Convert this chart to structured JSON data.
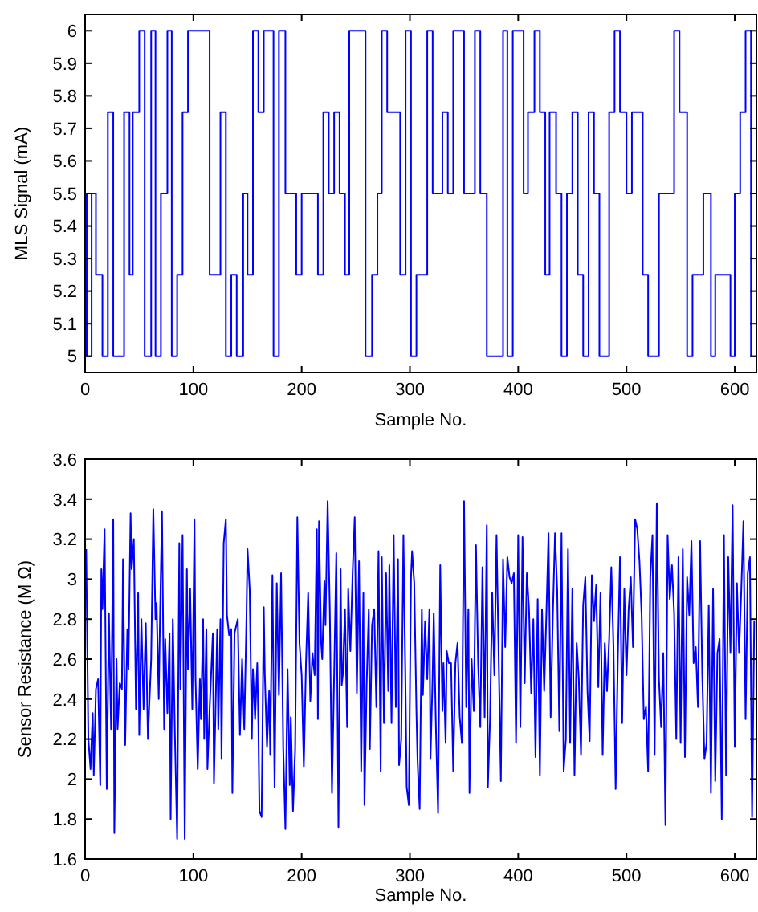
{
  "chart_data": [
    {
      "type": "step",
      "xlabel": "Sample No.",
      "ylabel": "MLS Signal (mA)",
      "xlim": [
        0,
        620
      ],
      "ylim": [
        4.95,
        6.05
      ],
      "xticks": [
        0,
        100,
        200,
        300,
        400,
        500,
        600
      ],
      "yticks": [
        5,
        5.1,
        5.2,
        5.3,
        5.4,
        5.5,
        5.6,
        5.7,
        5.8,
        5.9,
        6
      ],
      "series": [
        {
          "color": "#0000ff",
          "x": [
            0,
            1.5,
            6,
            10,
            16,
            21,
            26,
            36,
            41,
            44,
            50,
            55,
            61,
            65,
            70,
            76,
            80,
            85,
            90,
            95,
            115,
            125,
            130,
            135,
            140,
            146,
            150,
            155,
            160,
            165,
            174,
            179,
            185,
            195,
            200,
            215,
            220,
            225,
            230,
            235,
            240,
            244,
            259,
            265,
            270,
            274,
            279,
            291,
            296,
            301,
            306,
            316,
            321,
            330,
            335,
            340,
            350,
            360,
            365,
            371,
            386,
            390,
            395,
            405,
            409,
            415,
            420,
            425,
            429,
            435,
            440,
            445,
            450,
            455,
            460,
            465,
            470,
            475,
            484,
            489,
            494,
            500,
            505,
            515,
            520,
            530,
            544,
            549,
            556,
            561,
            571,
            578,
            582,
            596,
            600,
            605,
            610,
            615,
            620
          ],
          "values": [
            5.5,
            5,
            5.5,
            5.25,
            5,
            5.75,
            5,
            5.75,
            5.25,
            5.75,
            6,
            5,
            6,
            5,
            5.5,
            6,
            5,
            5.25,
            5.75,
            6,
            5.25,
            5.75,
            5,
            5.25,
            5,
            5.5,
            5.25,
            6,
            5.75,
            6,
            5,
            6,
            5.5,
            5.25,
            5.5,
            5.25,
            5.75,
            5.5,
            5.75,
            5.5,
            5.25,
            6,
            5,
            5.25,
            5.5,
            6,
            5.75,
            5.25,
            6,
            5,
            5.25,
            6,
            5.5,
            5.75,
            5.5,
            6,
            5.5,
            6,
            5.5,
            5,
            6,
            5,
            6,
            5.5,
            5.75,
            6,
            5.75,
            5.25,
            5.75,
            5.5,
            5,
            5.5,
            5.75,
            5.25,
            5,
            5.75,
            5.5,
            5,
            5.75,
            6,
            5.75,
            5.5,
            5.75,
            5.25,
            5,
            5.5,
            6,
            5.75,
            5,
            5.25,
            5.5,
            5,
            5.25,
            5,
            5.5,
            5.75,
            6,
            5,
            5
          ]
        }
      ]
    },
    {
      "type": "line",
      "xlabel": "Sample No.",
      "ylabel": "Sensor Resistance (M Ω)",
      "xlim": [
        0,
        620
      ],
      "ylim": [
        1.6,
        3.6
      ],
      "xticks": [
        0,
        100,
        200,
        300,
        400,
        500,
        600
      ],
      "yticks": [
        1.6,
        1.8,
        2,
        2.2,
        2.4,
        2.6,
        2.8,
        3,
        3.2,
        3.4,
        3.6
      ],
      "series": [
        {
          "color": "#0000ff",
          "x": [
            1,
            3,
            5,
            7,
            8,
            10,
            12,
            14,
            15,
            16,
            18,
            20,
            22,
            24,
            26,
            27,
            29,
            30,
            32,
            34,
            35,
            37,
            39,
            40,
            42,
            43,
            45,
            47,
            49,
            50,
            52,
            54,
            56,
            58,
            61,
            63,
            65,
            66,
            68,
            69,
            71,
            73,
            74,
            76,
            78,
            79,
            81,
            83,
            85,
            87,
            88,
            90,
            92,
            94,
            95,
            97,
            99,
            101,
            102,
            104,
            106,
            107,
            109,
            110,
            112,
            113,
            115,
            118,
            119,
            122,
            123,
            125,
            126,
            128,
            130,
            131,
            133,
            135,
            136,
            138,
            141,
            143,
            145,
            147,
            149,
            150,
            152,
            154,
            155,
            157,
            159,
            160,
            161,
            163,
            165,
            166,
            168,
            170,
            171,
            173,
            175,
            177,
            179,
            181,
            183,
            185,
            187,
            189,
            190,
            192,
            194,
            196,
            198,
            200,
            202,
            204,
            206,
            208,
            210,
            212,
            214,
            215,
            216,
            218,
            219,
            221,
            222,
            224,
            226,
            228,
            230,
            232,
            234,
            236,
            237,
            238,
            240,
            242,
            243,
            245,
            247,
            249,
            251,
            253,
            255,
            257,
            258,
            260,
            262,
            263,
            265,
            267,
            269,
            271,
            273,
            274,
            276,
            278,
            280,
            281,
            283,
            285,
            287,
            289,
            290,
            292,
            294,
            296,
            297,
            299,
            301,
            302,
            304,
            306,
            307,
            309,
            311,
            312,
            314,
            316,
            318,
            319,
            321,
            322,
            324,
            326,
            328,
            330,
            331,
            333,
            334,
            336,
            338,
            340,
            342,
            344,
            346,
            348,
            350,
            352,
            354,
            355,
            357,
            359,
            361,
            363,
            365,
            367,
            369,
            371,
            372,
            374,
            376,
            378,
            380,
            382,
            384,
            386,
            388,
            390,
            392,
            394,
            396,
            398,
            400,
            402,
            404,
            406,
            408,
            410,
            412,
            414,
            416,
            418,
            420,
            422,
            424,
            426,
            428,
            430,
            432,
            434,
            436,
            438,
            440,
            442,
            444,
            446,
            448,
            450,
            452,
            454,
            456,
            458,
            460,
            462,
            464,
            466,
            468,
            470,
            472,
            474,
            476,
            478,
            480,
            482,
            484,
            486,
            488,
            490,
            492,
            494,
            496,
            498,
            500,
            502,
            504,
            506,
            508,
            510,
            512,
            514,
            516,
            518,
            520,
            522,
            524,
            526,
            528,
            530,
            532,
            534,
            536,
            538,
            540,
            542,
            544,
            546,
            548,
            550,
            552,
            554,
            556,
            558,
            560,
            562,
            564,
            566,
            568,
            570,
            572,
            574,
            576,
            578,
            580,
            582,
            584,
            586,
            588,
            590,
            592,
            594,
            596,
            598,
            600,
            602,
            604,
            606,
            608,
            610,
            612,
            614,
            616,
            618
          ],
          "values": [
            3.15,
            2.2,
            2.05,
            2.33,
            2.02,
            2.45,
            2.5,
            1.97,
            3.05,
            2.85,
            3.25,
            1.95,
            2.83,
            2.25,
            3.3,
            1.73,
            2.6,
            2.25,
            2.48,
            2.45,
            3.1,
            2.17,
            2.75,
            2.55,
            3.33,
            3.05,
            3.2,
            2.35,
            2.93,
            2.22,
            2.8,
            2.35,
            2.78,
            2.2,
            2.6,
            3.35,
            2.8,
            2.88,
            2.4,
            2.75,
            3.34,
            2.25,
            2.7,
            2.33,
            2.73,
            1.8,
            2.8,
            2.2,
            1.7,
            3.18,
            2.45,
            3.22,
            1.7,
            3.05,
            2.55,
            2.95,
            2.35,
            3.3,
            2.5,
            2.05,
            2.5,
            2.3,
            2.8,
            2.2,
            2.75,
            2.05,
            2.35,
            2.73,
            1.98,
            2.75,
            2.25,
            2.8,
            2.1,
            3.18,
            3.3,
            2.82,
            2.72,
            2.75,
            1.93,
            2.73,
            2.8,
            2.22,
            2.6,
            2.25,
            2.8,
            3.15,
            2.95,
            2.2,
            2.55,
            2.3,
            2.58,
            2.28,
            1.84,
            1.81,
            2.86,
            2.52,
            2.16,
            2.44,
            2.12,
            3.02,
            1.96,
            2.98,
            2.42,
            3.03,
            2.15,
            1.75,
            2.55,
            1.97,
            2.31,
            1.84,
            2.15,
            3.31,
            2.68,
            2.52,
            2.06,
            2.58,
            2.93,
            2.39,
            2.63,
            2.52,
            3.25,
            2.3,
            3.29,
            2.68,
            2.6,
            2.99,
            2.77,
            3.39,
            2.85,
            1.93,
            2.52,
            3.13,
            1.76,
            3.05,
            2.47,
            2.52,
            2.85,
            2.26,
            2.95,
            2.64,
            3.02,
            3.31,
            2.43,
            3.09,
            2.04,
            2.93,
            1.87,
            2.47,
            2.85,
            2.15,
            2.77,
            2.85,
            2.36,
            3.14,
            2.04,
            3.11,
            2.28,
            3.03,
            2.44,
            3.07,
            2.28,
            3.22,
            2.36,
            3.1,
            2.07,
            2.2,
            3.22,
            2.42,
            1.96,
            1.87,
            3.01,
            3.14,
            2.98,
            2.34,
            2.1,
            1.85,
            2.85,
            2.42,
            2.79,
            2.5,
            2.85,
            2.1,
            2.52,
            2.83,
            2.26,
            1.83,
            3.07,
            2.34,
            2.58,
            2.18,
            2.64,
            2.58,
            2.58,
            2.04,
            2.58,
            2.68,
            2.31,
            2.18,
            3.39,
            2.36,
            2.85,
            1.93,
            2.6,
            2.34,
            3.17,
            2.58,
            2.26,
            3.06,
            2.31,
            3.27,
            1.96,
            2.3,
            2.93,
            2.52,
            3.22,
            2.6,
            1.99,
            3.1,
            2.66,
            3.11,
            3.01,
            2.98,
            3.03,
            2.18,
            3.22,
            2.26,
            3.21,
            2.48,
            3.03,
            2.85,
            2.43,
            2.8,
            2.11,
            2.9,
            2.02,
            2.85,
            2.44,
            2.82,
            3.23,
            2.31,
            2.82,
            3.23,
            2.95,
            2.24,
            3.23,
            2.04,
            2.2,
            3.15,
            2.18,
            2.95,
            2.02,
            2.68,
            2.5,
            2.12,
            2.87,
            3.01,
            2.44,
            2.19,
            3.02,
            2.79,
            2.97,
            2.46,
            2.93,
            2.12,
            2.68,
            2.44,
            2.7,
            3.06,
            2.66,
            1.95,
            2.6,
            3.11,
            2.28,
            2.95,
            2.52,
            2.85,
            3.01,
            2.66,
            3.3,
            3.25,
            3.09,
            2.82,
            2.3,
            2.36,
            2.04,
            3.01,
            3.22,
            2.12,
            3.38,
            2.5,
            2.26,
            2.63,
            1.77,
            3.22,
            2.9,
            3.07,
            2.83,
            2.2,
            3.11,
            2.18,
            3.15,
            2.11,
            3.01,
            2.82,
            3.19,
            2.58,
            2.66,
            2.36,
            3.19,
            2.52,
            2.1,
            2.18,
            2.87,
            1.93,
            2.95,
            1.99,
            2.63,
            2.7,
            1.8,
            3.22,
            2.02,
            3.11,
            2.63,
            3.37,
            2.16,
            2.98,
            2.63,
            2.94,
            3.29,
            2.3,
            3.03,
            3.11,
            1.81,
            2.79
          ]
        }
      ]
    }
  ]
}
